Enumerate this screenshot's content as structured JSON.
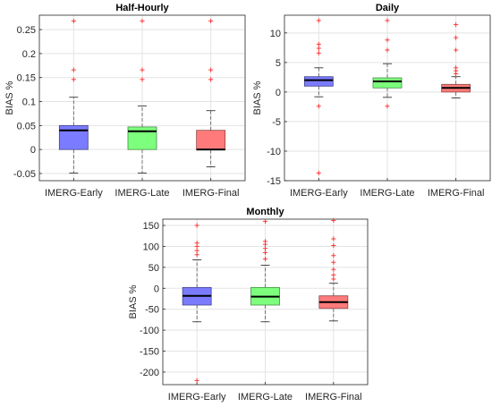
{
  "chart_data": [
    {
      "type": "box",
      "title": "Half-Hourly",
      "ylabel": "BIAS %",
      "ylim": [
        -0.065,
        0.28
      ],
      "yticks": [
        -0.05,
        0,
        0.05,
        0.1,
        0.15,
        0.2,
        0.25
      ],
      "ytick_labels": [
        "-0.05",
        "0",
        "0.05",
        "0.1",
        "0.15",
        "0.2",
        "0.25"
      ],
      "categories": [
        "IMERG-Early",
        "IMERG-Late",
        "IMERG-Final"
      ],
      "colors": [
        "#7b7bff",
        "#7dff7d",
        "#ff7b7b"
      ],
      "grid": true,
      "boxes": [
        {
          "whisker_low": -0.049,
          "q1": 0.0,
          "median": 0.04,
          "q3": 0.05,
          "whisker_high": 0.109,
          "outliers": [
            0.146,
            0.166,
            0.268
          ]
        },
        {
          "whisker_low": -0.049,
          "q1": 0.0,
          "median": 0.038,
          "q3": 0.047,
          "whisker_high": 0.091,
          "outliers": [
            0.146,
            0.166,
            0.268
          ]
        },
        {
          "whisker_low": -0.036,
          "q1": -0.001,
          "median": 0.0,
          "q3": 0.04,
          "whisker_high": 0.081,
          "outliers": [
            0.146,
            0.166,
            0.268
          ]
        }
      ]
    },
    {
      "type": "box",
      "title": "Daily",
      "ylabel": "BIAS %",
      "ylim": [
        -15,
        13
      ],
      "yticks": [
        -15,
        -10,
        -5,
        0,
        5,
        10
      ],
      "ytick_labels": [
        "-15",
        "-10",
        "-5",
        "0",
        "5",
        "10"
      ],
      "categories": [
        "IMERG-Early",
        "IMERG-Late",
        "IMERG-Final"
      ],
      "colors": [
        "#7b7bff",
        "#7dff7d",
        "#ff7b7b"
      ],
      "grid": true,
      "boxes": [
        {
          "whisker_low": -0.8,
          "q1": 1.0,
          "median": 2.0,
          "q3": 2.6,
          "whisker_high": 4.1,
          "outliers": [
            -2.4,
            6.6,
            7.4,
            8.1,
            12.1,
            -13.7
          ]
        },
        {
          "whisker_low": -0.9,
          "q1": 0.7,
          "median": 1.8,
          "q3": 2.4,
          "whisker_high": 4.8,
          "outliers": [
            -2.4,
            7.1,
            8.8,
            12.1
          ]
        },
        {
          "whisker_low": -1.0,
          "q1": 0.0,
          "median": 0.7,
          "q3": 1.3,
          "whisker_high": 2.6,
          "outliers": [
            3.1,
            3.6,
            4.1,
            7.1,
            9.2,
            11.4
          ]
        }
      ]
    },
    {
      "type": "box",
      "title": "Monthly",
      "ylabel": "BIAS %",
      "ylim": [
        -230,
        165
      ],
      "yticks": [
        -200,
        -150,
        -100,
        -50,
        0,
        50,
        100,
        150
      ],
      "ytick_labels": [
        "-200",
        "-150",
        "-100",
        "-50",
        "0",
        "50",
        "100",
        "150"
      ],
      "categories": [
        "IMERG-Early",
        "IMERG-Late",
        "IMERG-Final"
      ],
      "colors": [
        "#7b7bff",
        "#7dff7d",
        "#ff7b7b"
      ],
      "grid": true,
      "boxes": [
        {
          "whisker_low": -80,
          "q1": -40,
          "median": -18,
          "q3": 2,
          "whisker_high": 68,
          "outliers": [
            80,
            90,
            100,
            108,
            150,
            -220
          ]
        },
        {
          "whisker_low": -80,
          "q1": -40,
          "median": -20,
          "q3": 2,
          "whisker_high": 55,
          "outliers": [
            70,
            85,
            95,
            105,
            112,
            160
          ]
        },
        {
          "whisker_low": -78,
          "q1": -48,
          "median": -33,
          "q3": -18,
          "whisker_high": 12,
          "outliers": [
            22,
            32,
            45,
            62,
            78,
            102,
            118,
            162
          ]
        }
      ]
    }
  ]
}
